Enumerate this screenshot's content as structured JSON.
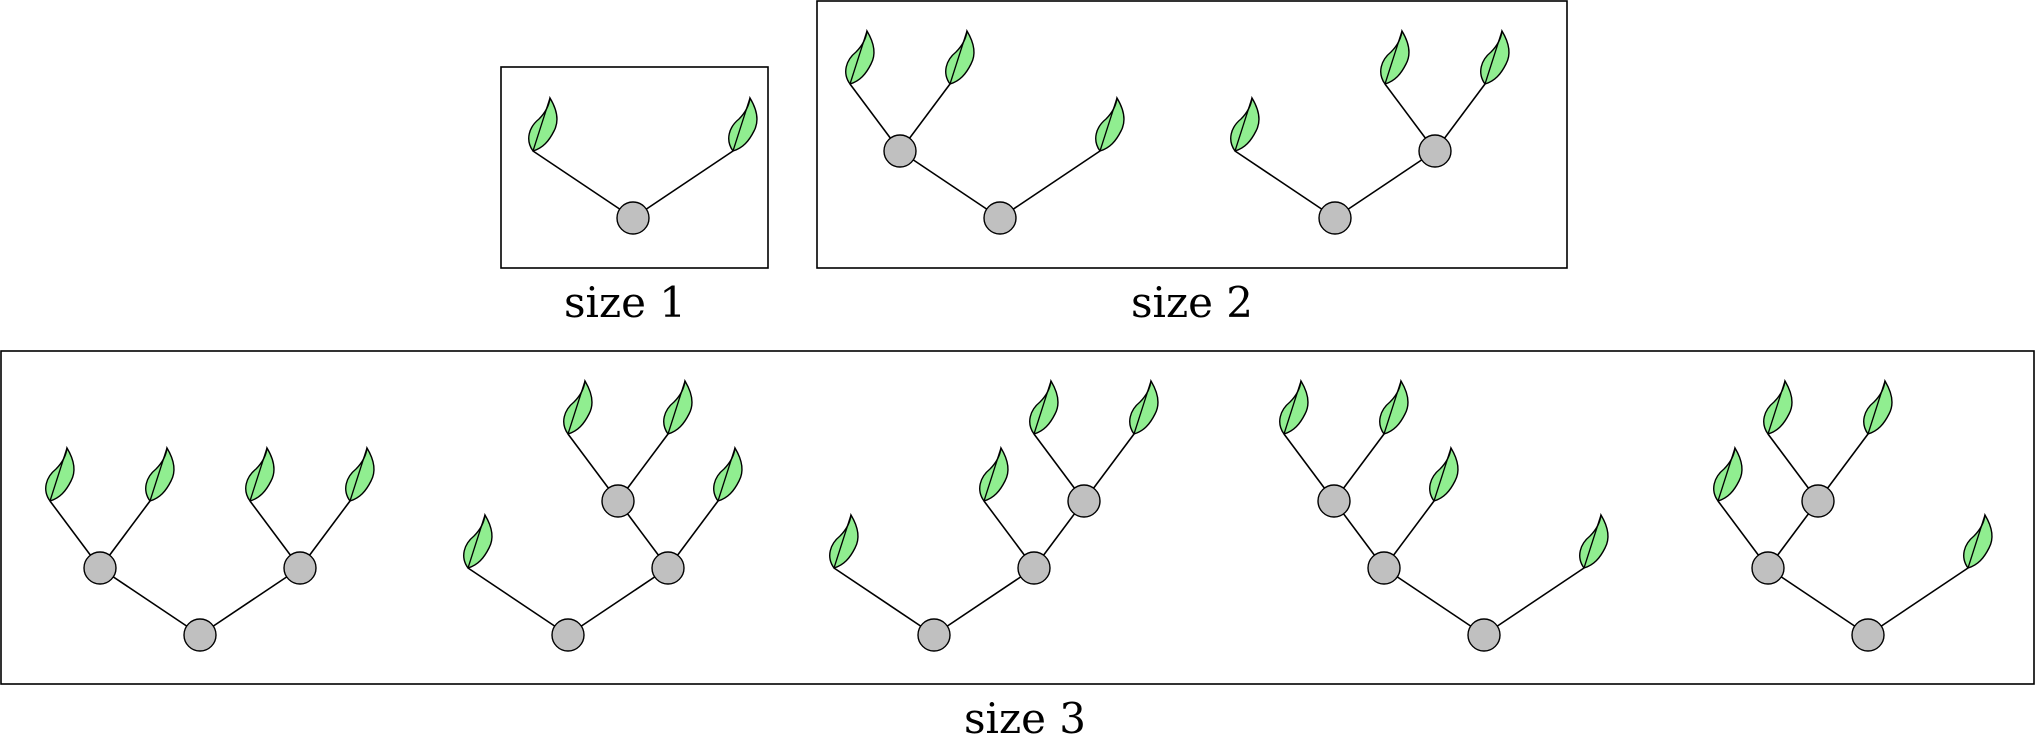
{
  "colors": {
    "node_fill": "#c0c0c0",
    "leaf_fill": "#90ee90",
    "stroke": "#000000"
  },
  "groups": [
    {
      "caption": "size 1",
      "trees": [
        {
          "shape": "(L,L)"
        }
      ]
    },
    {
      "caption": "size 2",
      "trees": [
        {
          "shape": "((L,L),L)"
        },
        {
          "shape": "(L,(L,L))"
        }
      ]
    },
    {
      "caption": "size 3",
      "trees": [
        {
          "shape": "((L,L),(L,L))"
        },
        {
          "shape": "(L,((L,L),L))"
        },
        {
          "shape": "(L,(L,(L,L)))"
        },
        {
          "shape": "(((L,L),L),L)"
        },
        {
          "shape": "((L,(L,L)),L)"
        }
      ]
    }
  ]
}
